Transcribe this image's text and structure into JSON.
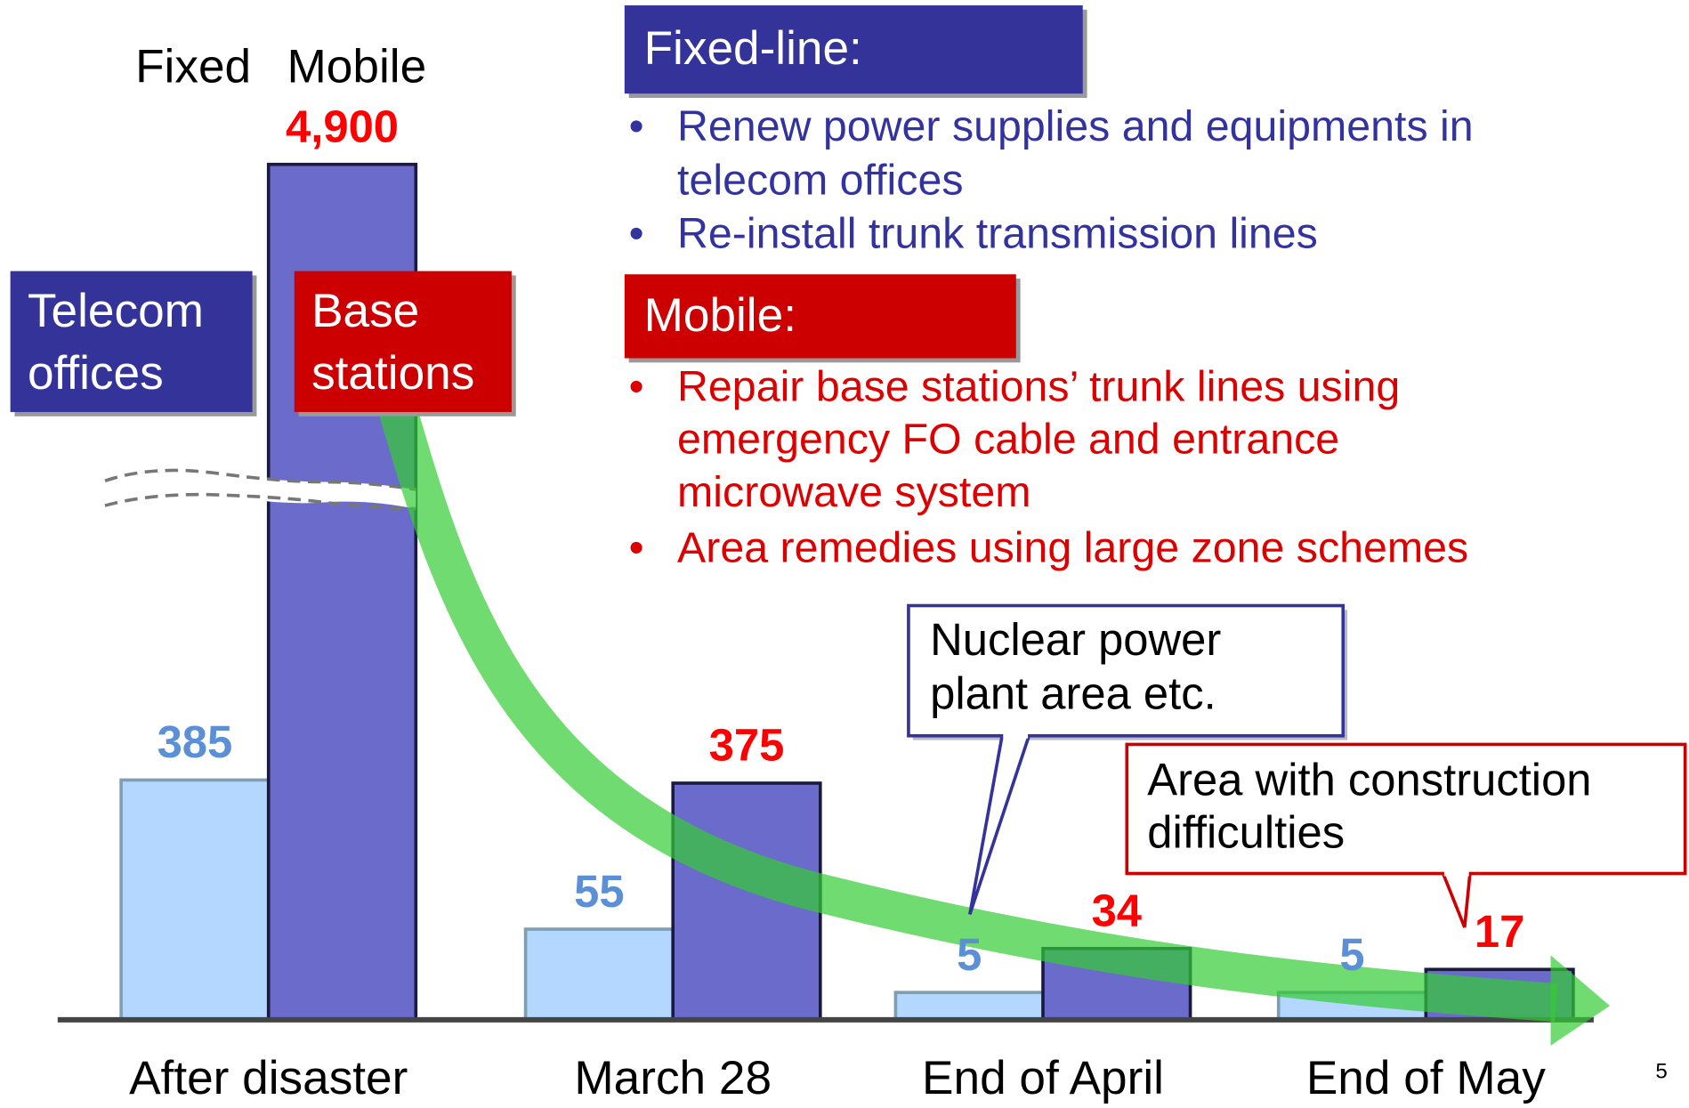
{
  "chart_data": {
    "type": "bar",
    "categories": [
      "After disaster",
      "March 28",
      "End of April",
      "End of May"
    ],
    "series": [
      {
        "name": "Fixed",
        "color": "#b3d7ff",
        "label_color": "#5b8fd6",
        "values": [
          385,
          55,
          5,
          5
        ]
      },
      {
        "name": "Mobile",
        "color": "#6b6bcc",
        "label_color": "#ff0000",
        "values": [
          4900,
          375,
          34,
          17
        ],
        "value_labels": [
          "4,900",
          "375",
          "34",
          "17"
        ]
      }
    ],
    "callouts": {
      "fixed": [
        "Telecom",
        "offices"
      ],
      "mobile": [
        "Base",
        "stations"
      ]
    },
    "fixed_line": {
      "heading": "Fixed-line:",
      "bullets": [
        [
          "Renew power supplies and equipments in",
          "telecom offices"
        ],
        [
          "Re-install trunk transmission lines"
        ]
      ]
    },
    "mobile": {
      "heading": "Mobile:",
      "bullets": [
        [
          "Repair base stations’ trunk lines using",
          "emergency FO cable and entrance",
          "microwave system"
        ],
        [
          "Area remedies using large zone schemes"
        ]
      ]
    },
    "notes": [
      [
        "Nuclear power",
        "plant area etc."
      ],
      [
        "Area with construction",
        "difficulties"
      ]
    ],
    "page_number": "5"
  }
}
